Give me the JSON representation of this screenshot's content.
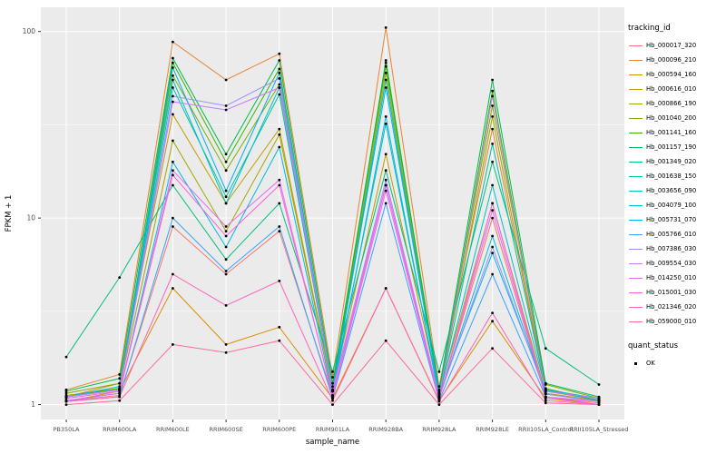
{
  "figure": {
    "y_axis_title": "FPKM + 1",
    "x_axis_title": "sample_name",
    "legend": {
      "tracking_title": "tracking_id",
      "quant_title": "quant_status",
      "quant_ok_label": "OK"
    }
  },
  "chart_data": {
    "type": "line",
    "title": "",
    "xlabel": "sample_name",
    "ylabel": "FPKM + 1",
    "y_scale": "log10",
    "y_ticks": [
      1,
      10,
      100
    ],
    "ylim": [
      1,
      110
    ],
    "grid": true,
    "legend_position": "right",
    "panel_bg": "#EBEBEB",
    "grid_color": "#FFFFFF",
    "point_color": "#000000",
    "categories": [
      "PB350LA",
      "RRIM600LA",
      "RRIM600LE",
      "RRIM600SE",
      "RRIM600PE",
      "RRIM901LA",
      "RRIM928BA",
      "RRIM928LA",
      "RRIM928LE",
      "RRII105LA_Control",
      "RRII105LA_Stressed"
    ],
    "series": [
      {
        "name": "Hb_000017_320",
        "color": "#F8766D",
        "values": [
          1.05,
          1.12,
          9,
          5,
          8.5,
          1.12,
          15,
          1.08,
          10,
          1.1,
          1.02
        ]
      },
      {
        "name": "Hb_000096_210",
        "color": "#EA8331",
        "values": [
          1.2,
          1.45,
          88,
          55,
          76,
          1.4,
          105,
          1.25,
          30,
          1.2,
          1.05
        ]
      },
      {
        "name": "Hb_000594_160",
        "color": "#D89000",
        "values": [
          1.04,
          1.18,
          4.2,
          2.1,
          2.6,
          1.08,
          4.2,
          1.05,
          2.8,
          1.08,
          1.0
        ]
      },
      {
        "name": "Hb_000616_010",
        "color": "#C09B00",
        "values": [
          1.1,
          1.3,
          36,
          12,
          30,
          1.2,
          22,
          1.15,
          12,
          1.15,
          1.05
        ]
      },
      {
        "name": "Hb_000866_190",
        "color": "#A3A500",
        "values": [
          1.12,
          1.22,
          26,
          8.5,
          28,
          1.18,
          60,
          1.12,
          35,
          1.18,
          1.06
        ]
      },
      {
        "name": "Hb_001040_200",
        "color": "#7CAE00",
        "values": [
          1.15,
          1.3,
          58,
          18,
          52,
          1.25,
          65,
          1.18,
          40,
          1.28,
          1.08
        ]
      },
      {
        "name": "Hb_001141_160",
        "color": "#39B600",
        "values": [
          1.1,
          1.22,
          68,
          20,
          63,
          1.2,
          70,
          1.15,
          48,
          1.22,
          1.05
        ]
      },
      {
        "name": "Hb_001157_190",
        "color": "#00BB4E",
        "values": [
          1.18,
          1.38,
          72,
          22,
          70,
          1.3,
          68,
          1.2,
          55,
          1.3,
          1.1
        ]
      },
      {
        "name": "Hb_001349_020",
        "color": "#00BF7D",
        "values": [
          1.8,
          4.8,
          15,
          6,
          12,
          1.5,
          18,
          1.5,
          20,
          2.0,
          1.28
        ]
      },
      {
        "name": "Hb_001638_150",
        "color": "#00C1A3",
        "values": [
          1.1,
          1.2,
          50,
          13,
          46,
          1.18,
          55,
          1.12,
          25,
          1.2,
          1.05
        ]
      },
      {
        "name": "Hb_003656_090",
        "color": "#00BFC4",
        "values": [
          1.1,
          1.25,
          55,
          12,
          50,
          1.2,
          32,
          1.12,
          15,
          1.2,
          1.08
        ]
      },
      {
        "name": "Hb_004079_100",
        "color": "#00BAE0",
        "values": [
          1.05,
          1.15,
          20,
          7,
          24,
          1.12,
          35,
          1.08,
          8,
          1.14,
          1.04
        ]
      },
      {
        "name": "Hb_005731_070",
        "color": "#00B0F6",
        "values": [
          1.1,
          1.2,
          64,
          14,
          60,
          1.2,
          50,
          1.14,
          6.5,
          1.18,
          1.08
        ]
      },
      {
        "name": "Hb_005766_010",
        "color": "#35A2FF",
        "values": [
          1.04,
          1.1,
          10,
          5.2,
          9,
          1.08,
          12,
          1.05,
          5,
          1.1,
          1.0
        ]
      },
      {
        "name": "Hb_007386_030",
        "color": "#9590FF",
        "values": [
          1.1,
          1.2,
          45,
          40,
          56,
          1.18,
          16,
          1.1,
          7,
          1.14,
          1.04
        ]
      },
      {
        "name": "Hb_009554_030",
        "color": "#C77CFF",
        "values": [
          1.1,
          1.2,
          42,
          38,
          50,
          1.2,
          15,
          1.1,
          45,
          1.18,
          1.08
        ]
      },
      {
        "name": "Hb_014250_010",
        "color": "#E76BF3",
        "values": [
          1.05,
          1.15,
          18,
          9,
          16,
          1.1,
          14,
          1.06,
          12,
          1.1,
          1.04
        ]
      },
      {
        "name": "Hb_015001_030",
        "color": "#FA62DB",
        "values": [
          1.08,
          1.18,
          17,
          8,
          15,
          1.12,
          15,
          1.08,
          11,
          1.1,
          1.0
        ]
      },
      {
        "name": "Hb_021346_020",
        "color": "#FF62BC",
        "values": [
          1.04,
          1.1,
          5,
          3.4,
          4.6,
          1.05,
          4.2,
          1.04,
          3.1,
          1.05,
          1.0
        ]
      },
      {
        "name": "Hb_059000_010",
        "color": "#FF6A98",
        "values": [
          1.0,
          1.05,
          2.1,
          1.9,
          2.2,
          1.0,
          2.2,
          1.0,
          2.0,
          1.02,
          1.0
        ]
      }
    ]
  }
}
